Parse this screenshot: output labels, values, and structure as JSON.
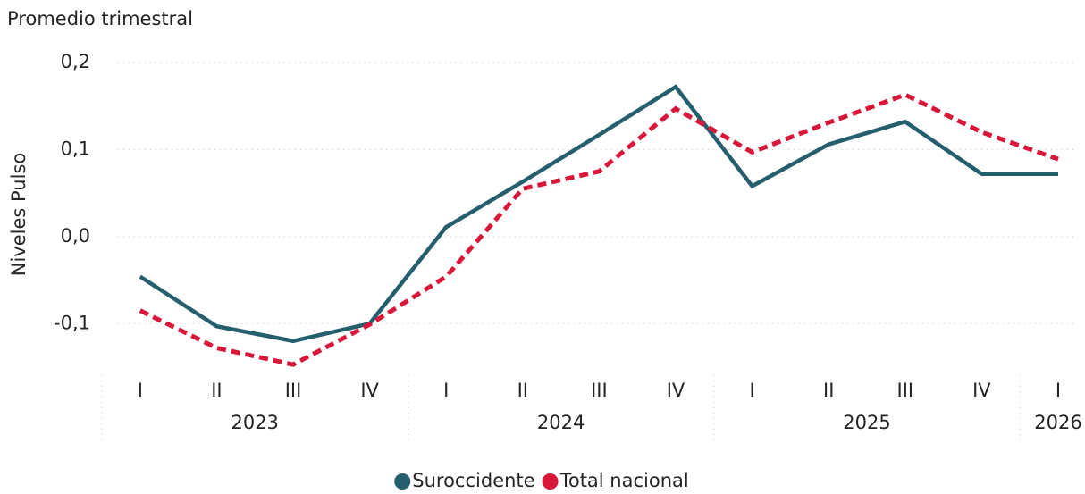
{
  "chart_data": {
    "type": "line",
    "subtitle": "Promedio trimestral",
    "y_label": "Niveles Pulso",
    "groups": [
      {
        "label": "2023",
        "categories": [
          "I",
          "II",
          "III",
          "IV"
        ]
      },
      {
        "label": "2024",
        "categories": [
          "I",
          "II",
          "III",
          "IV"
        ]
      },
      {
        "label": "2025",
        "categories": [
          "I",
          "II",
          "III",
          "IV"
        ]
      },
      {
        "label": "2026",
        "categories": [
          "I"
        ]
      }
    ],
    "series": [
      {
        "name": "Suroccidente",
        "color": "#255f6d",
        "dashed": false,
        "values": [
          -0.046,
          -0.103,
          -0.12,
          -0.1,
          0.011,
          0.063,
          0.117,
          0.172,
          0.058,
          0.106,
          0.132,
          0.072,
          0.072
        ]
      },
      {
        "name": "Total nacional",
        "color": "#d9173a",
        "dashed": true,
        "values": [
          -0.085,
          -0.128,
          -0.147,
          -0.101,
          -0.046,
          0.055,
          0.075,
          0.147,
          0.097,
          0.131,
          0.163,
          0.12,
          0.089
        ]
      }
    ],
    "ylim": [
      -0.15,
      0.2
    ],
    "yticks": [
      {
        "value": -0.1,
        "label": "-0,1"
      },
      {
        "value": 0,
        "label": "0,0"
      },
      {
        "value": 0.1,
        "label": "0,1"
      },
      {
        "value": 0.2,
        "label": "0,2"
      }
    ],
    "grid": true,
    "legend": "bottom"
  }
}
